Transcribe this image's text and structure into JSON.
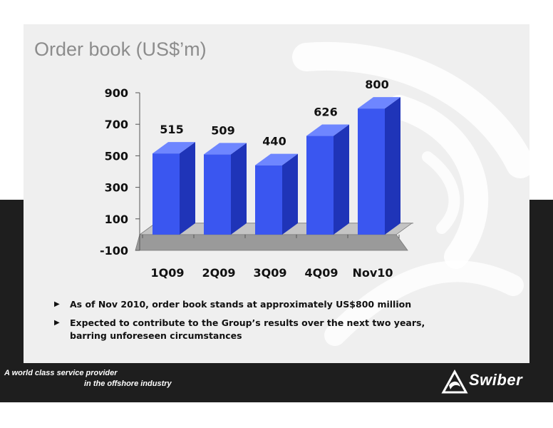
{
  "title": "Order book (US$’m)",
  "chart_data": {
    "type": "bar",
    "categories": [
      "1Q09",
      "2Q09",
      "3Q09",
      "4Q09",
      "Nov10"
    ],
    "series": [
      {
        "values": [
          515,
          509,
          440,
          626,
          800
        ]
      }
    ],
    "data_labels": [
      "515",
      "509",
      "440",
      "626",
      "800"
    ],
    "y_ticks": [
      "900",
      "700",
      "500",
      "300",
      "100",
      "-100"
    ],
    "ylim": [
      -100,
      900
    ],
    "bar_color": "#3a56f0",
    "floor_color": "#9a9a9a",
    "style": "3d",
    "grid": false
  },
  "bullets": [
    {
      "marker": "▶",
      "lines": [
        "As of Nov 2010, order book stands at approximately US$800 million"
      ]
    },
    {
      "marker": "▶",
      "lines": [
        "Expected to contribute to the Group’s results over the next two years,",
        "barring unforeseen circumstances"
      ]
    }
  ],
  "footer": {
    "tagline_line1": "A world class service provider",
    "tagline_line2": "in the offshore industry",
    "brand": "Swiber"
  },
  "colors": {
    "band": "#1e1e1e",
    "panel": "#efefef",
    "title": "#8c8c8c"
  }
}
